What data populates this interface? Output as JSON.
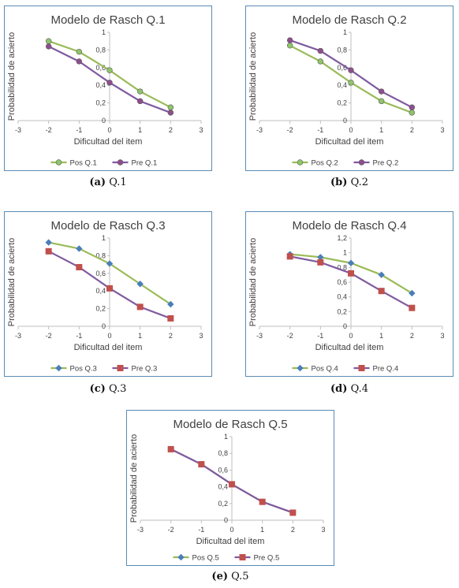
{
  "colors": {
    "pos_line": "#9BBB59",
    "pos_marker_circle": "#8FC56A",
    "pre_line": "#7F5AA0",
    "pre_marker_circle": "#8E4E8E",
    "pos_diamond": "#4A7EBB",
    "pre_square": "#C0504D",
    "frame": "#5B8BB5",
    "axis": "#bfbfbf",
    "title": "#404040",
    "text": "#404040"
  },
  "chart_data": [
    {
      "type": "line",
      "title": "Modelo de Rasch Q.1",
      "xlabel": "Dificultad del item",
      "ylabel": "Probabilidad de acierto",
      "xlim": [
        -3,
        3
      ],
      "ylim": [
        0,
        1
      ],
      "xticks": [
        "-3",
        "-2",
        "-1",
        "0",
        "1",
        "2",
        "3"
      ],
      "yticks": [
        "0",
        "0,2",
        "0,4",
        "0,6",
        "0,8",
        "1"
      ],
      "legend_position": "bottom",
      "series": [
        {
          "name": "Pos Q.1",
          "marker": "circle",
          "x": [
            -2,
            -1,
            0,
            1,
            2
          ],
          "values": [
            0.9,
            0.78,
            0.57,
            0.33,
            0.15
          ]
        },
        {
          "name": "Pre Q.1",
          "marker": "circle",
          "x": [
            -2,
            -1,
            0,
            1,
            2
          ],
          "values": [
            0.84,
            0.67,
            0.43,
            0.22,
            0.09
          ]
        }
      ],
      "caption_letter": "(a)",
      "caption_text": "Q.1"
    },
    {
      "type": "line",
      "title": "Modelo de Rasch Q.2",
      "xlabel": "Dificultad del item",
      "ylabel": "Probabilidad de acierto",
      "xlim": [
        -3,
        3
      ],
      "ylim": [
        0,
        1
      ],
      "xticks": [
        "-3",
        "-2",
        "-1",
        "0",
        "1",
        "2",
        "3"
      ],
      "yticks": [
        "0",
        "0,2",
        "0,4",
        "0,6",
        "0,8",
        "1"
      ],
      "legend_position": "bottom",
      "series": [
        {
          "name": "Pos Q.2",
          "marker": "circle",
          "x": [
            -2,
            -1,
            0,
            1,
            2
          ],
          "values": [
            0.85,
            0.67,
            0.43,
            0.22,
            0.09
          ]
        },
        {
          "name": "Pre Q.2",
          "marker": "circle",
          "x": [
            -2,
            -1,
            0,
            1,
            2
          ],
          "values": [
            0.91,
            0.79,
            0.57,
            0.33,
            0.15
          ]
        }
      ],
      "caption_letter": "(b)",
      "caption_text": "Q.2"
    },
    {
      "type": "line",
      "title": "Modelo de Rasch Q.3",
      "xlabel": "Dificultad del item",
      "ylabel": "Probabilidad de acierto",
      "xlim": [
        -3,
        3
      ],
      "ylim": [
        0,
        1
      ],
      "xticks": [
        "-3",
        "-2",
        "-1",
        "0",
        "1",
        "2",
        "3"
      ],
      "yticks": [
        "0",
        "0,2",
        "0,4",
        "0,6",
        "0,8",
        "1"
      ],
      "legend_position": "bottom",
      "series": [
        {
          "name": "Pos Q.3",
          "marker": "diamond",
          "x": [
            -2,
            -1,
            0,
            1,
            2
          ],
          "values": [
            0.95,
            0.88,
            0.71,
            0.48,
            0.25
          ]
        },
        {
          "name": "Pre Q.3",
          "marker": "square",
          "x": [
            -2,
            -1,
            0,
            1,
            2
          ],
          "values": [
            0.85,
            0.67,
            0.43,
            0.22,
            0.09
          ]
        }
      ],
      "caption_letter": "(c)",
      "caption_text": "Q.3"
    },
    {
      "type": "line",
      "title": "Modelo de Rasch Q.4",
      "xlabel": "Dificultad del item",
      "ylabel": "Probabilidad de acierto",
      "xlim": [
        -3,
        3
      ],
      "ylim": [
        0,
        1.2
      ],
      "xticks": [
        "-3",
        "-2",
        "-1",
        "0",
        "1",
        "2",
        "3"
      ],
      "yticks": [
        "0",
        "0,2",
        "0,4",
        "0,6",
        "0,8",
        "1",
        "1,2"
      ],
      "legend_position": "bottom",
      "series": [
        {
          "name": "Pos Q.4",
          "marker": "diamond",
          "x": [
            -2,
            -1,
            0,
            1,
            2
          ],
          "values": [
            0.98,
            0.94,
            0.86,
            0.7,
            0.45
          ]
        },
        {
          "name": "Pre Q.4",
          "marker": "square",
          "x": [
            -2,
            -1,
            0,
            1,
            2
          ],
          "values": [
            0.95,
            0.87,
            0.72,
            0.48,
            0.25
          ]
        }
      ],
      "caption_letter": "(d)",
      "caption_text": "Q.4"
    },
    {
      "type": "line",
      "title": "Modelo de Rasch Q.5",
      "xlabel": "Dificultad del item",
      "ylabel": "Probabilidad de acierto",
      "xlim": [
        -3,
        3
      ],
      "ylim": [
        0,
        1
      ],
      "xticks": [
        "-3",
        "-2",
        "-1",
        "0",
        "1",
        "2",
        "3"
      ],
      "yticks": [
        "0",
        "0,2",
        "0,4",
        "0,6",
        "0,8",
        "1"
      ],
      "legend_position": "bottom",
      "series": [
        {
          "name": "Pos Q.5",
          "marker": "diamond",
          "x": [
            -2,
            -1,
            0,
            1,
            2
          ],
          "values": [
            0.85,
            0.67,
            0.43,
            0.22,
            0.09
          ]
        },
        {
          "name": "Pre Q.5",
          "marker": "square",
          "x": [
            -2,
            -1,
            0,
            1,
            2
          ],
          "values": [
            0.85,
            0.67,
            0.43,
            0.22,
            0.09
          ]
        }
      ],
      "caption_letter": "(e)",
      "caption_text": "Q.5"
    }
  ]
}
